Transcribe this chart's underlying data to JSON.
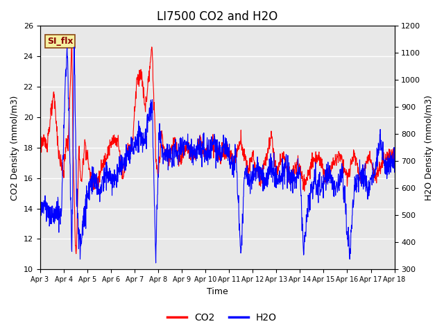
{
  "title": "LI7500 CO2 and H2O",
  "xlabel": "Time",
  "ylabel_left": "CO2 Density (mmol/m3)",
  "ylabel_right": "H2O Density (mmol/m3)",
  "ylim_left": [
    10,
    26
  ],
  "ylim_right": [
    300,
    1200
  ],
  "yticks_left": [
    10,
    12,
    14,
    16,
    18,
    20,
    22,
    24,
    26
  ],
  "yticks_right": [
    300,
    400,
    500,
    600,
    700,
    800,
    900,
    1000,
    1100,
    1200
  ],
  "xtick_labels": [
    "Apr 3",
    "Apr 4",
    "Apr 5",
    "Apr 6",
    "Apr 7",
    "Apr 8",
    "Apr 9",
    "Apr 10",
    "Apr 11",
    "Apr 12",
    "Apr 13",
    "Apr 14",
    "Apr 15",
    "Apr 16",
    "Apr 17",
    "Apr 18"
  ],
  "legend_labels": [
    "CO2",
    "H2O"
  ],
  "co2_color": "red",
  "h2o_color": "blue",
  "plot_bg_color": "#e8e8e8",
  "grid_color": "white",
  "annotation_text": "SI_flx",
  "title_fontsize": 12
}
